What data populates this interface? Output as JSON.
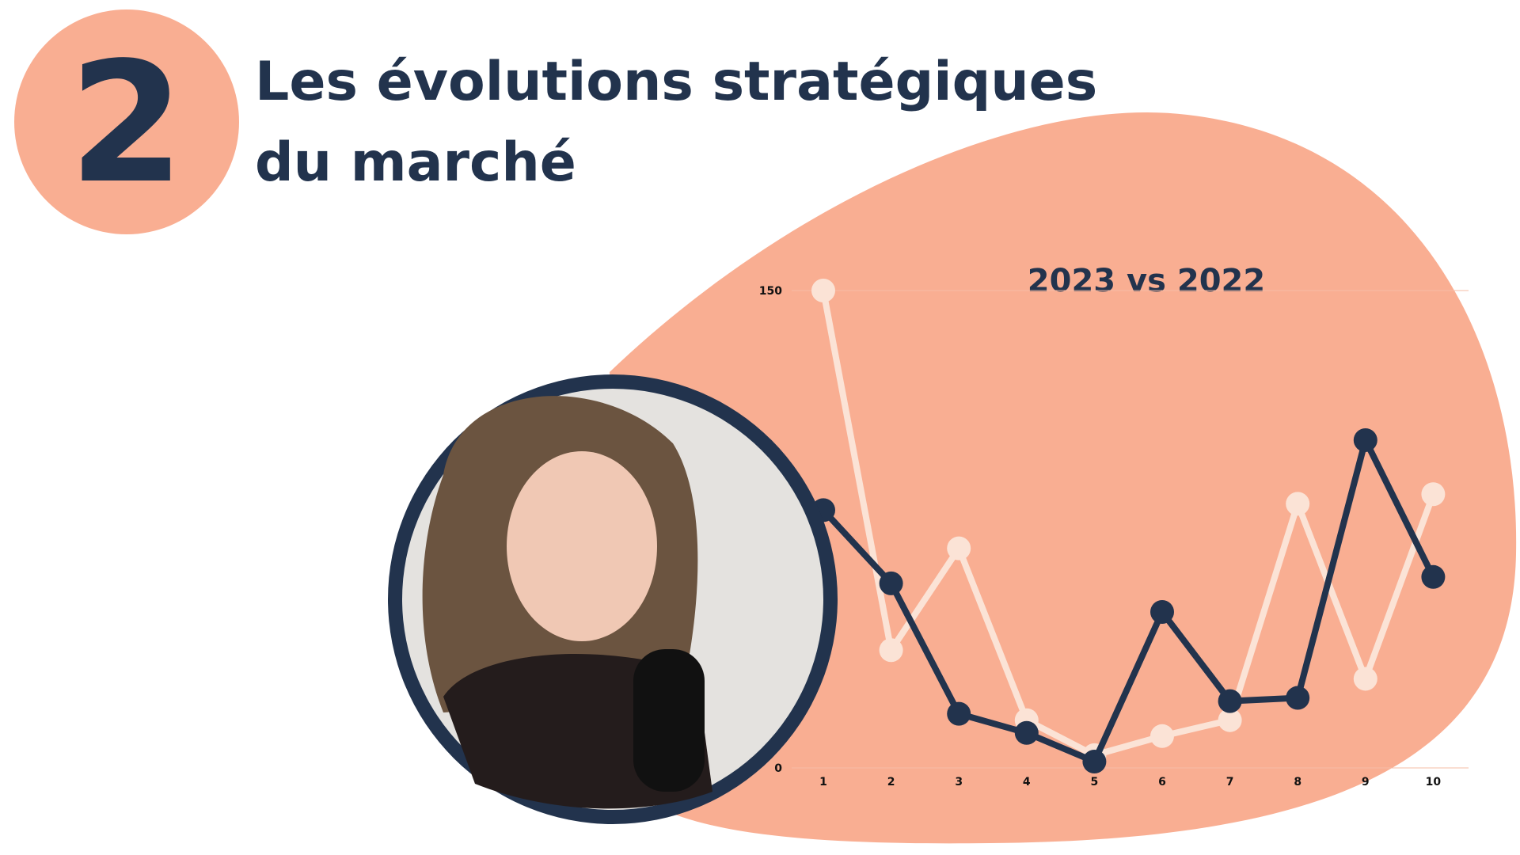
{
  "header": {
    "badge": "2",
    "title_lines": [
      "Les évolutions stratégiques",
      "du marché"
    ]
  },
  "chart_data": {
    "type": "line",
    "title": "2023 vs 2022",
    "categories": [
      "1",
      "2",
      "3",
      "4",
      "5",
      "6",
      "7",
      "8",
      "9",
      "10"
    ],
    "ylim": [
      0,
      150
    ],
    "yticks": [
      0,
      150
    ],
    "series": [
      {
        "color": "#fbe3d6",
        "values": [
          150,
          37,
          69,
          15,
          4,
          10,
          15,
          83,
          28,
          86
        ]
      },
      {
        "color": "#22334d",
        "values": [
          81,
          58,
          17,
          11,
          2,
          49,
          21,
          22,
          103,
          60
        ]
      }
    ]
  }
}
